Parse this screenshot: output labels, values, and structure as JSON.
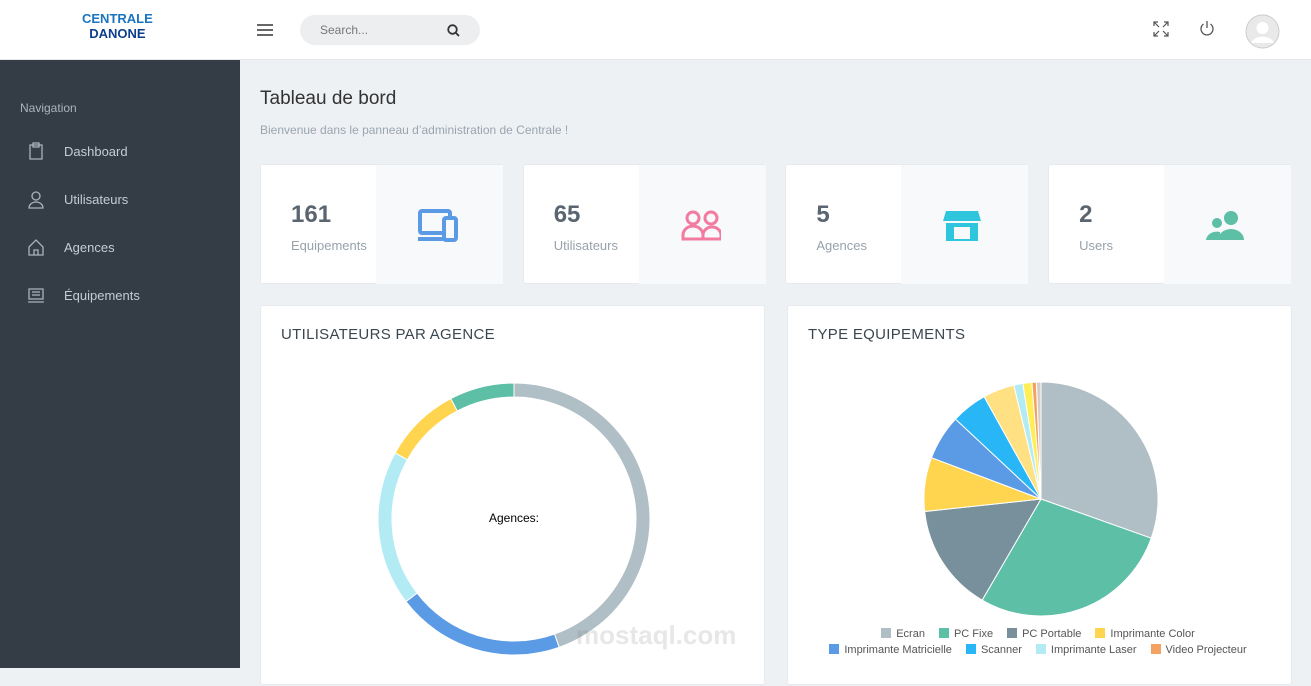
{
  "header": {
    "logo": [
      "CENTRALE",
      "DANONE"
    ],
    "search_placeholder": "Search..."
  },
  "sidebar": {
    "heading": "Navigation",
    "items": [
      "Dashboard",
      "Utilisateurs",
      "Agences",
      "Équipements"
    ]
  },
  "page": {
    "title": "Tableau de bord",
    "subtitle": "Bienvenue dans le panneau d’administration de Centrale !"
  },
  "stats": [
    {
      "value": 161,
      "label": "Equipements",
      "color": "#5b9be6"
    },
    {
      "value": 65,
      "label": "Utilisateurs",
      "color": "#f27ba0"
    },
    {
      "value": 5,
      "label": "Agences",
      "color": "#2fc6dd"
    },
    {
      "value": 2,
      "label": "Users",
      "color": "#5cbfa6"
    }
  ],
  "charts": [
    {
      "type": "doughnut",
      "title": "UTILISATEURS PAR AGENCE",
      "center_label": "Agences:",
      "categories": [
        null,
        null,
        null,
        null,
        null
      ],
      "values": [
        29,
        13,
        12,
        6,
        5
      ],
      "colors": [
        "#b0bec5",
        "#5b9be6",
        "#b3ebf4",
        "#ffd54f",
        "#5cbfa6"
      ]
    },
    {
      "type": "pie",
      "title": "TYPE EQUIPEMENTS",
      "categories": [
        "Ecran",
        "PC Fixe",
        "PC Portable",
        "Imprimante Color",
        "Imprimante Matricielle",
        "Scanner",
        null,
        "Imprimante Laser",
        null,
        "Video Projecteur",
        null
      ],
      "values": [
        49,
        45,
        24,
        12,
        10,
        8,
        7,
        2,
        2,
        1,
        1
      ],
      "colors": [
        "#b0bec5",
        "#5cbfa6",
        "#78909c",
        "#ffd54f",
        "#5b9be6",
        "#29b6f6",
        "#ffe082",
        "#b3ebf4",
        "#ffee58",
        "#f4a261",
        "#d7ccc8"
      ]
    }
  ],
  "watermark": "mostaql.com"
}
